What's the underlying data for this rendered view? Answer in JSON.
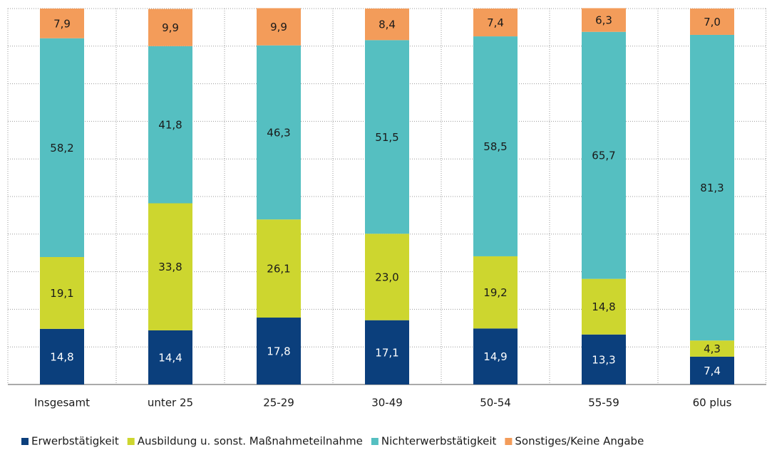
{
  "chart_data": {
    "type": "bar",
    "stacked": true,
    "categories": [
      "Insgesamt",
      "unter 25",
      "25-29",
      "30-49",
      "50-54",
      "55-59",
      "60 plus"
    ],
    "series": [
      {
        "name": "Erwerbstätigkeit",
        "color": "#0b3f7c",
        "label_color": "#ffffff",
        "values": [
          14.8,
          14.4,
          17.8,
          17.1,
          14.9,
          13.3,
          7.4
        ],
        "value_labels": [
          "14,8",
          "14,4",
          "17,8",
          "17,1",
          "14,9",
          "13,3",
          "7,4"
        ]
      },
      {
        "name": "Ausbildung u. sonst. Maßnahmeteilnahme",
        "color": "#cdd62f",
        "label_color": "#1a1a1a",
        "values": [
          19.1,
          33.8,
          26.1,
          23.0,
          19.2,
          14.8,
          4.3
        ],
        "value_labels": [
          "19,1",
          "33,8",
          "26,1",
          "23,0",
          "19,2",
          "14,8",
          "4,3"
        ]
      },
      {
        "name": "Nichterwerbstätigkeit",
        "color": "#55bfc1",
        "label_color": "#1a1a1a",
        "values": [
          58.2,
          41.8,
          46.3,
          51.5,
          58.5,
          65.7,
          81.3
        ],
        "value_labels": [
          "58,2",
          "41,8",
          "46,3",
          "51,5",
          "58,5",
          "65,7",
          "81,3"
        ]
      },
      {
        "name": "Sonstiges/Keine Angabe",
        "color": "#f39c5a",
        "label_color": "#1a1a1a",
        "values": [
          7.9,
          9.9,
          9.9,
          8.4,
          7.4,
          6.3,
          7.0
        ],
        "value_labels": [
          "7,9",
          "9,9",
          "9,9",
          "8,4",
          "7,4",
          "6,3",
          "7,0"
        ]
      }
    ],
    "ylim": [
      0,
      100
    ],
    "yticks": [
      0,
      10,
      20,
      30,
      40,
      50,
      60,
      70,
      80,
      90,
      100
    ],
    "grid": true,
    "legend": "bottom"
  }
}
